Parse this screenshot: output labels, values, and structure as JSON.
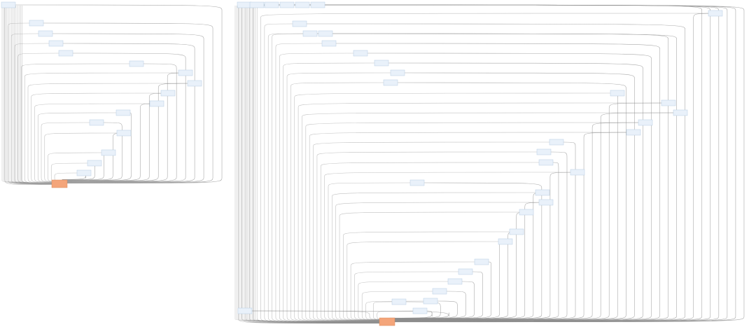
{
  "graph": {
    "colors": {
      "background": "#ffffff",
      "edge": "#8c8c8c",
      "node_fill": "#e9f1fa",
      "node_stroke": "#b8cde2",
      "output_fill": "#f4a57a",
      "output_stroke": "#d9895c"
    },
    "label_note": "",
    "clusters": [
      {
        "id": "cluster-left",
        "nodes": [
          {
            "id": "L1",
            "kind": "source",
            "lines": []
          },
          {
            "id": "L2",
            "kind": "step",
            "lines": []
          },
          {
            "id": "L3",
            "kind": "step",
            "lines": []
          },
          {
            "id": "L4",
            "kind": "step",
            "lines": []
          },
          {
            "id": "L5",
            "kind": "step",
            "lines": []
          },
          {
            "id": "L6",
            "kind": "step",
            "lines": []
          },
          {
            "id": "L7",
            "kind": "step",
            "lines": []
          },
          {
            "id": "L8",
            "kind": "step",
            "lines": []
          },
          {
            "id": "L9",
            "kind": "step",
            "lines": []
          },
          {
            "id": "L10",
            "kind": "step",
            "lines": []
          },
          {
            "id": "L11",
            "kind": "step",
            "lines": []
          },
          {
            "id": "L12",
            "kind": "step",
            "lines": []
          },
          {
            "id": "L13",
            "kind": "step",
            "lines": []
          },
          {
            "id": "L14",
            "kind": "step",
            "lines": []
          },
          {
            "id": "L15",
            "kind": "step",
            "lines": []
          },
          {
            "id": "L16",
            "kind": "step",
            "lines": []
          },
          {
            "id": "LOUT",
            "kind": "output",
            "lines": []
          }
        ]
      },
      {
        "id": "cluster-right",
        "nodes": [
          {
            "id": "R1",
            "kind": "source",
            "lines": []
          },
          {
            "id": "R2",
            "kind": "source",
            "lines": []
          },
          {
            "id": "R3",
            "kind": "source",
            "lines": []
          },
          {
            "id": "R4",
            "kind": "source",
            "lines": []
          },
          {
            "id": "R5",
            "kind": "source",
            "lines": []
          },
          {
            "id": "R6",
            "kind": "source",
            "lines": []
          },
          {
            "id": "R7",
            "kind": "step",
            "lines": []
          },
          {
            "id": "R8",
            "kind": "step",
            "lines": []
          },
          {
            "id": "R9",
            "kind": "step",
            "lines": []
          },
          {
            "id": "R10",
            "kind": "step",
            "lines": []
          },
          {
            "id": "R11",
            "kind": "step",
            "lines": []
          },
          {
            "id": "R12",
            "kind": "step",
            "lines": []
          },
          {
            "id": "R13",
            "kind": "step",
            "lines": []
          },
          {
            "id": "R14",
            "kind": "step",
            "lines": []
          },
          {
            "id": "R15",
            "kind": "step",
            "lines": []
          },
          {
            "id": "R16",
            "kind": "step",
            "lines": []
          },
          {
            "id": "R17",
            "kind": "step",
            "lines": []
          },
          {
            "id": "R18",
            "kind": "step",
            "lines": []
          },
          {
            "id": "R19",
            "kind": "step",
            "lines": []
          },
          {
            "id": "R20",
            "kind": "step",
            "lines": []
          },
          {
            "id": "R21",
            "kind": "step",
            "lines": []
          },
          {
            "id": "R22",
            "kind": "step",
            "lines": []
          },
          {
            "id": "R23",
            "kind": "step",
            "lines": []
          },
          {
            "id": "R24",
            "kind": "step",
            "lines": []
          },
          {
            "id": "R25",
            "kind": "step",
            "lines": []
          },
          {
            "id": "R26",
            "kind": "step",
            "lines": []
          },
          {
            "id": "R27",
            "kind": "step",
            "lines": []
          },
          {
            "id": "R28",
            "kind": "step",
            "lines": []
          },
          {
            "id": "R29",
            "kind": "step",
            "lines": []
          },
          {
            "id": "R30",
            "kind": "step",
            "lines": []
          },
          {
            "id": "R31",
            "kind": "step",
            "lines": []
          },
          {
            "id": "R32",
            "kind": "step",
            "lines": []
          },
          {
            "id": "R33",
            "kind": "step",
            "lines": []
          },
          {
            "id": "R34",
            "kind": "step",
            "lines": []
          },
          {
            "id": "R35",
            "kind": "step",
            "lines": []
          },
          {
            "id": "R36",
            "kind": "step",
            "lines": []
          },
          {
            "id": "R37",
            "kind": "step",
            "lines": []
          },
          {
            "id": "R38",
            "kind": "step",
            "lines": []
          },
          {
            "id": "ROUT",
            "kind": "output",
            "lines": []
          }
        ]
      }
    ]
  }
}
